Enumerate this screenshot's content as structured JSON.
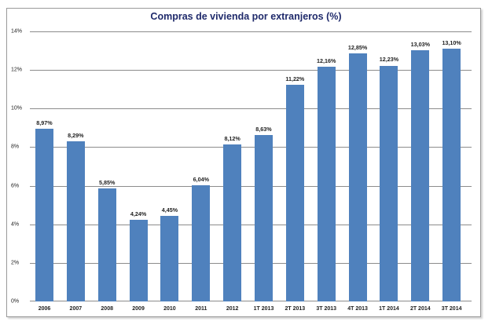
{
  "chart_data": {
    "type": "bar",
    "title": "Compras de vivienda por extranjeros (%)",
    "xlabel": "",
    "ylabel": "",
    "ylim": [
      0,
      14
    ],
    "yticks": [
      "0%",
      "2%",
      "4%",
      "6%",
      "8%",
      "10%",
      "12%",
      "14%"
    ],
    "grid": true,
    "legend": null,
    "bar_color": "#4f81bd",
    "categories": [
      "2006",
      "2007",
      "2008",
      "2009",
      "2010",
      "2011",
      "2012",
      "1T 2013",
      "2T 2013",
      "3T 2013",
      "4T 2013",
      "1T 2014",
      "2T 2014",
      "3T 2014"
    ],
    "values": [
      8.97,
      8.29,
      5.85,
      4.24,
      4.45,
      6.04,
      8.12,
      8.63,
      11.22,
      12.16,
      12.85,
      12.23,
      13.03,
      13.1
    ],
    "labels": [
      "8,97%",
      "8,29%",
      "5,85%",
      "4,24%",
      "4,45%",
      "6,04%",
      "8,12%",
      "8,63%",
      "11,22%",
      "12,16%",
      "12,85%",
      "12,23%",
      "13,03%",
      "13,10%"
    ]
  }
}
